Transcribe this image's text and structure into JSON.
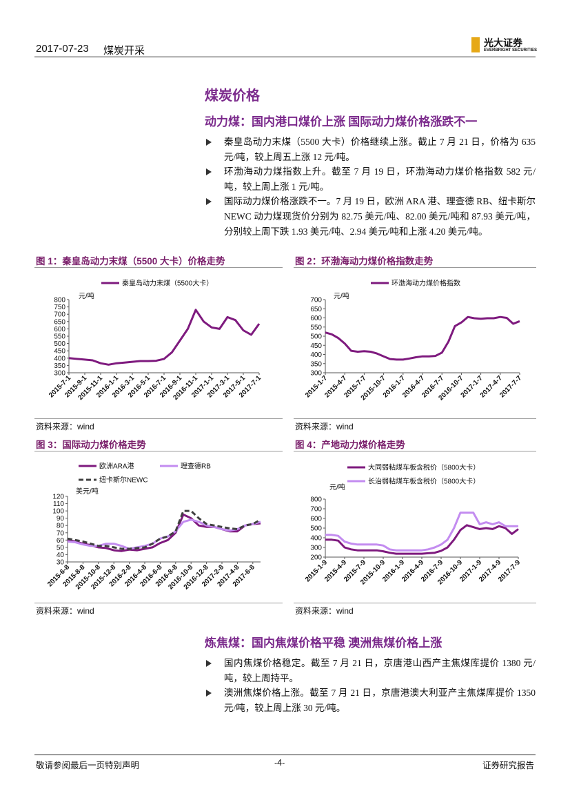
{
  "header": {
    "date": "2017-07-23",
    "category": "煤炭开采",
    "logo_cn": "光大证券",
    "logo_en": "EVERBRIGHT SECURITIES"
  },
  "section_title": "煤炭价格",
  "subsections": [
    {
      "title": "动力煤：国内港口煤价上涨 国际动力煤价格涨跌不一",
      "bullets": [
        "秦皇岛动力末煤（5500 大卡）价格继续上涨。截止 7 月 21 日，价格为 635 元/吨，较上周五上涨 12 元/吨。",
        "环渤海动力煤指数上升。截至 7 月 19 日，环渤海动力煤价格指数 582 元/吨，较上周上涨 1 元/吨。",
        "国际动力煤价格涨跌不一。7 月 19 日，欧洲 ARA 港、理查德 RB、纽卡斯尔 NEWC 动力煤现货价分别为 82.75 美元/吨、82.00 美元/吨和 87.93 美元/吨，分别较上周下跌 1.93 美元/吨、2.94 美元/吨和上涨 4.20 美元/吨。"
      ]
    },
    {
      "title": "炼焦煤：国内焦煤价格平稳 澳洲焦煤价格上涨",
      "bullets": [
        "国内焦煤价格稳定。截至 7 月 21 日，京唐港山西产主焦煤库提价 1380 元/吨，较上周持平。",
        "澳洲焦煤价格上涨。截至 7 月 21 日，京唐港澳大利亚产主焦煤库提价 1350 元/吨，较上周上涨 30 元/吨。"
      ]
    }
  ],
  "chart_data": [
    {
      "type": "line",
      "title": "图 1：秦皇岛动力末煤（5500 大卡）价格走势",
      "source": "资料来源：wind",
      "y_label": "元/吨",
      "categories": [
        "2015-7-1",
        null,
        "2015-9-1",
        null,
        "2015-11-1",
        null,
        "2016-1-1",
        null,
        "2016-3-1",
        null,
        "2016-5-1",
        null,
        "2016-7-1",
        null,
        "2016-9-1",
        null,
        "2016-11-1",
        null,
        "2017-1-1",
        null,
        "2017-3-1",
        null,
        "2017-5-1",
        null,
        "2017-7-1"
      ],
      "series": [
        {
          "name": "秦皇岛动力末煤（5500大卡）",
          "color": "#7e1a7e",
          "values": [
            400,
            395,
            390,
            385,
            365,
            355,
            365,
            370,
            375,
            380,
            380,
            382,
            395,
            440,
            520,
            600,
            730,
            650,
            610,
            600,
            680,
            660,
            590,
            560,
            635
          ]
        }
      ],
      "ylim": [
        300,
        800
      ],
      "yticks": [
        300,
        350,
        400,
        450,
        500,
        550,
        600,
        650,
        700,
        750,
        800
      ]
    },
    {
      "type": "line",
      "title": "图 2：环渤海动力煤价格指数走势",
      "source": "资料来源：wind",
      "y_label": "元/吨",
      "categories": [
        "2015-1-7",
        null,
        null,
        "2015-4-7",
        null,
        null,
        "2015-7-7",
        null,
        null,
        "2015-10-7",
        null,
        null,
        "2016-1-7",
        null,
        null,
        "2016-4-7",
        null,
        null,
        "2016-7-7",
        null,
        null,
        "2016-10-7",
        null,
        null,
        "2017-1-7",
        null,
        null,
        "2017-4-7",
        null,
        null,
        "2017-7-7"
      ],
      "series": [
        {
          "name": "环渤海动力煤价格指数",
          "color": "#7e1a7e",
          "values": [
            520,
            510,
            490,
            460,
            420,
            415,
            418,
            415,
            405,
            390,
            375,
            372,
            372,
            378,
            385,
            390,
            390,
            392,
            410,
            470,
            555,
            575,
            605,
            598,
            595,
            598,
            598,
            605,
            600,
            568,
            582
          ]
        }
      ],
      "ylim": [
        300,
        700
      ],
      "yticks": [
        300,
        350,
        400,
        450,
        500,
        550,
        600,
        650,
        700
      ]
    },
    {
      "type": "line",
      "title": "图 3：国际动力煤价格走势",
      "source": "资料来源：wind",
      "y_label": "美元/吨",
      "categories": [
        "2015-6-8",
        null,
        "2015-8-8",
        null,
        "2015-10-8",
        null,
        "2015-12-8",
        null,
        "2016-2-8",
        null,
        "2016-4-8",
        null,
        "2016-6-8",
        null,
        "2016-8-8",
        null,
        "2016-10-8",
        null,
        "2016-12-8",
        null,
        "2017-2-8",
        null,
        "2017-4-8",
        null,
        "2017-6-8",
        null
      ],
      "series": [
        {
          "name": "欧洲ARA港",
          "color": "#7e1a7e",
          "values": [
            60,
            58,
            55,
            53,
            50,
            49,
            46,
            45,
            47,
            46,
            48,
            50,
            56,
            60,
            70,
            95,
            90,
            80,
            78,
            78,
            75,
            72,
            72,
            80,
            82,
            83
          ]
        },
        {
          "name": "理查德RB",
          "color": "#c38cf0",
          "values": [
            58,
            57,
            54,
            52,
            52,
            55,
            55,
            52,
            48,
            50,
            52,
            55,
            62,
            65,
            72,
            85,
            88,
            85,
            80,
            78,
            75,
            73,
            75,
            80,
            82,
            85
          ]
        },
        {
          "name": "纽卡斯尔NEWC",
          "color": "#404040",
          "dashed": true,
          "values": [
            62,
            60,
            58,
            55,
            52,
            52,
            50,
            48,
            48,
            49,
            50,
            55,
            62,
            65,
            72,
            100,
            100,
            90,
            82,
            80,
            78,
            76,
            75,
            80,
            82,
            88
          ]
        }
      ],
      "ylim": [
        30,
        120
      ],
      "yticks": [
        30,
        40,
        50,
        60,
        70,
        80,
        90,
        100,
        110,
        120
      ]
    },
    {
      "type": "line",
      "title": "图 4：产地动力煤价格走势",
      "source": "资料来源：wind",
      "y_label": "元/吨",
      "categories": [
        "2015-1-9",
        null,
        null,
        "2015-4-9",
        null,
        null,
        "2015-7-9",
        null,
        null,
        "2015-10-9",
        null,
        null,
        "2016-1-9",
        null,
        null,
        "2016-4-9",
        null,
        null,
        "2016-7-9",
        null,
        null,
        "2016-10-9",
        null,
        null,
        "2017-1-9",
        null,
        null,
        "2017-4-9",
        null,
        null,
        "2017-7-9"
      ],
      "series": [
        {
          "name": "大同弱粘煤车板含税价（5800大卡）",
          "color": "#7e1a7e",
          "values": [
            380,
            380,
            370,
            300,
            280,
            270,
            270,
            270,
            270,
            260,
            245,
            235,
            235,
            235,
            235,
            235,
            240,
            245,
            265,
            300,
            380,
            480,
            530,
            510,
            490,
            500,
            490,
            520,
            500,
            440,
            490
          ]
        },
        {
          "name": "长治弱粘煤车板含税价（5800大卡）",
          "color": "#c38cf0",
          "values": [
            430,
            430,
            420,
            360,
            340,
            330,
            330,
            330,
            330,
            320,
            280,
            270,
            270,
            270,
            270,
            270,
            280,
            300,
            330,
            380,
            500,
            660,
            660,
            660,
            540,
            560,
            540,
            560,
            520,
            520,
            520
          ]
        }
      ],
      "ylim": [
        200,
        800
      ],
      "yticks": [
        200,
        300,
        400,
        500,
        600,
        700,
        800
      ]
    }
  ],
  "footer": {
    "left": "敬请参阅最后一页特别声明",
    "page": "-4-",
    "right": "证券研究报告"
  }
}
